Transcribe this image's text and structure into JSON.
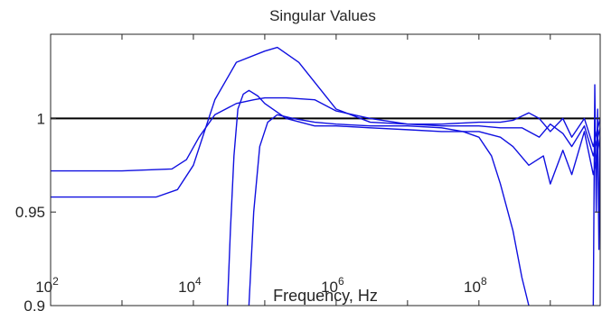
{
  "chart_data": {
    "type": "line",
    "title": "Singular Values",
    "xlabel": "Frequency, Hz",
    "ylabel": "",
    "xscale": "log",
    "xlim": [
      100,
      5000000000
    ],
    "ylim": [
      0.9,
      1.045
    ],
    "grid": false,
    "legend": "none",
    "x_ticks": [
      {
        "value": 100,
        "base": "10",
        "exp": "2"
      },
      {
        "value": 10000,
        "base": "10",
        "exp": "4"
      },
      {
        "value": 1000000,
        "base": "10",
        "exp": "6"
      },
      {
        "value": 100000000,
        "base": "10",
        "exp": "8"
      }
    ],
    "y_ticks": [
      {
        "value": 0.9,
        "label": "0.9"
      },
      {
        "value": 0.95,
        "label": "0.95"
      },
      {
        "value": 1.0,
        "label": "1"
      }
    ],
    "colors": {
      "series": "#1010e0",
      "reference": "#000000",
      "axes": "#262626"
    },
    "series": [
      {
        "color": "#000000",
        "width": 2,
        "x": [
          100,
          5000000000
        ],
        "y": [
          1.0,
          1.0
        ]
      },
      {
        "color": "#1010e0",
        "width": 1.4,
        "x": [
          100,
          1000,
          3000,
          6000,
          10000,
          20000,
          40000,
          100000,
          150000,
          300000,
          1000000,
          3000000,
          10000000,
          30000000,
          100000000,
          200000000,
          300000000,
          500000000,
          700000000,
          1000000000,
          1500000000,
          2000000000,
          3000000000,
          4000000000,
          5000000000
        ],
        "y": [
          0.958,
          0.958,
          0.958,
          0.962,
          0.975,
          1.01,
          1.03,
          1.036,
          1.038,
          1.03,
          1.005,
          0.998,
          0.997,
          0.997,
          0.998,
          0.998,
          0.999,
          1.003,
          1.0,
          0.993,
          1.0,
          0.99,
          1.0,
          0.985,
          1.0
        ]
      },
      {
        "color": "#1010e0",
        "width": 1.4,
        "x": [
          100,
          1000,
          5000,
          8000,
          12000,
          20000,
          40000,
          70000,
          100000,
          200000,
          500000,
          1000000,
          3000000,
          10000000,
          30000000,
          100000000,
          200000000,
          400000000,
          700000000,
          1000000000,
          1500000000,
          2000000000,
          3000000000,
          4000000000,
          5000000000
        ],
        "y": [
          0.972,
          0.972,
          0.973,
          0.978,
          0.99,
          1.002,
          1.008,
          1.01,
          1.011,
          1.011,
          1.01,
          1.004,
          1.0,
          0.997,
          0.996,
          0.996,
          0.995,
          0.995,
          0.99,
          0.997,
          0.992,
          0.985,
          0.996,
          0.98,
          0.995
        ]
      },
      {
        "color": "#1010e0",
        "width": 1.4,
        "x": [
          30000,
          33000,
          37000,
          42000,
          50000,
          60000,
          80000,
          100000,
          200000,
          500000,
          1000000,
          3000000,
          10000000,
          30000000,
          100000000,
          200000000,
          300000000,
          500000000,
          800000000,
          1000000000,
          1500000000,
          2000000000,
          3000000000,
          4000000000,
          5000000000
        ],
        "y": [
          0.9,
          0.94,
          0.98,
          1.005,
          1.013,
          1.015,
          1.012,
          1.008,
          1.0,
          0.996,
          0.996,
          0.995,
          0.994,
          0.993,
          0.993,
          0.99,
          0.985,
          0.975,
          0.98,
          0.965,
          0.983,
          0.97,
          0.993,
          0.97,
          0.99
        ]
      },
      {
        "color": "#1010e0",
        "width": 1.4,
        "x": [
          60000,
          70000,
          85000,
          110000,
          150000,
          250000,
          500000,
          1000000,
          3000000,
          10000000,
          30000000,
          60000000,
          100000000,
          150000000,
          200000000,
          300000000,
          400000000,
          500000000
        ],
        "y": [
          0.9,
          0.95,
          0.985,
          0.998,
          1.002,
          1.0,
          0.998,
          0.997,
          0.996,
          0.996,
          0.995,
          0.993,
          0.99,
          0.98,
          0.965,
          0.94,
          0.915,
          0.9
        ]
      },
      {
        "color": "#1010e0",
        "width": 1.4,
        "x": [
          4000000000,
          4200000000,
          4400000000,
          4600000000,
          4800000000,
          5000000000
        ],
        "y": [
          0.9,
          1.018,
          0.95,
          1.005,
          0.93,
          1.0
        ]
      }
    ]
  }
}
